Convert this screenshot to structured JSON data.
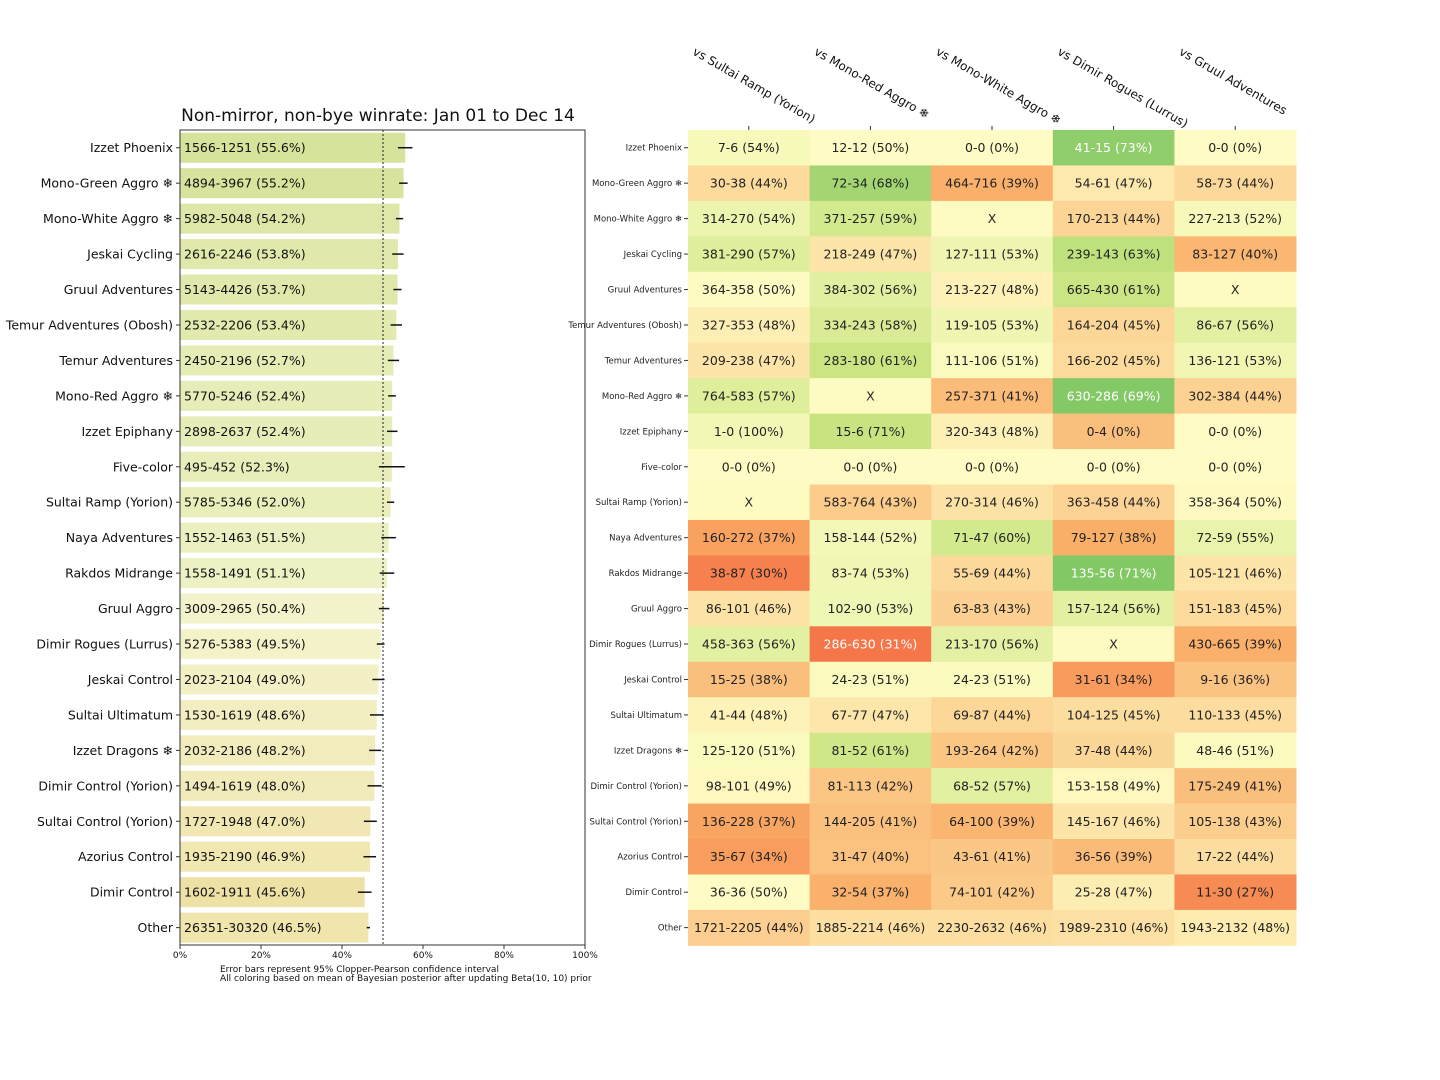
{
  "chart_data": [
    {
      "type": "bar",
      "title": "Non-mirror, non-bye winrate: Jan 01 to Dec 14",
      "orientation": "horizontal",
      "xlim": [
        0,
        100
      ],
      "x_ticks": [
        "0%",
        "20%",
        "40%",
        "60%",
        "80%",
        "100%"
      ],
      "reference_line": 50,
      "notes": [
        "Error bars represent 95% Clopper-Pearson confidence interval",
        "All coloring based on mean of Bayesian posterior after updating Beta(10, 10) prior"
      ],
      "categories": [
        "Izzet Phoenix",
        "Mono-Green Aggro ❄",
        "Mono-White Aggro ❄",
        "Jeskai Cycling",
        "Gruul Adventures",
        "Temur Adventures (Obosh)",
        "Temur Adventures",
        "Mono-Red Aggro ❄",
        "Izzet Epiphany",
        "Five-color",
        "Sultai Ramp (Yorion)",
        "Naya Adventures",
        "Rakdos Midrange",
        "Gruul Aggro",
        "Dimir Rogues (Lurrus)",
        "Jeskai Control",
        "Sultai Ultimatum",
        "Izzet Dragons ❄",
        "Dimir Control (Yorion)",
        "Sultai Control (Yorion)",
        "Azorius Control",
        "Dimir Control",
        "Other"
      ],
      "records": [
        "1566-1251 (55.6%)",
        "4894-3967 (55.2%)",
        "5982-5048 (54.2%)",
        "2616-2246 (53.8%)",
        "5143-4426 (53.7%)",
        "2532-2206 (53.4%)",
        "2450-2196 (52.7%)",
        "5770-5246 (52.4%)",
        "2898-2637 (52.4%)",
        "495-452 (52.3%)",
        "5785-5346 (52.0%)",
        "1552-1463 (51.5%)",
        "1558-1491 (51.1%)",
        "3009-2965 (50.4%)",
        "5276-5383 (49.5%)",
        "2023-2104 (49.0%)",
        "1530-1619 (48.6%)",
        "2032-2186 (48.2%)",
        "1494-1619 (48.0%)",
        "1727-1948 (47.0%)",
        "1935-2190 (46.9%)",
        "1602-1911 (45.6%)",
        "26351-30320 (46.5%)"
      ],
      "values": [
        55.6,
        55.2,
        54.2,
        53.8,
        53.7,
        53.4,
        52.7,
        52.4,
        52.4,
        52.3,
        52.0,
        51.5,
        51.1,
        50.4,
        49.5,
        49.0,
        48.6,
        48.2,
        48.0,
        47.0,
        46.9,
        45.6,
        46.5
      ],
      "error_bars": [
        [
          53.8,
          57.4
        ],
        [
          54.1,
          56.2
        ],
        [
          53.3,
          55.1
        ],
        [
          52.4,
          55.2
        ],
        [
          52.7,
          54.7
        ],
        [
          52.0,
          54.8
        ],
        [
          51.3,
          54.1
        ],
        [
          51.4,
          53.3
        ],
        [
          51.1,
          53.7
        ],
        [
          49.1,
          55.5
        ],
        [
          51.1,
          52.9
        ],
        [
          49.7,
          53.3
        ],
        [
          49.3,
          52.9
        ],
        [
          49.1,
          51.7
        ],
        [
          48.6,
          50.5
        ],
        [
          47.5,
          50.5
        ],
        [
          46.9,
          50.3
        ],
        [
          46.7,
          49.7
        ],
        [
          46.3,
          49.8
        ],
        [
          45.4,
          48.6
        ],
        [
          45.3,
          48.4
        ],
        [
          43.9,
          47.3
        ],
        [
          46.1,
          46.9
        ]
      ]
    },
    {
      "type": "heatmap",
      "columns": [
        "vs Sultai Ramp (Yorion)",
        "vs Mono-Red Aggro ❄",
        "vs Mono-White Aggro ❄",
        "vs Dimir Rogues (Lurrus)",
        "vs Gruul Adventures"
      ],
      "rows": [
        "Izzet Phoenix",
        "Mono-Green Aggro ❄",
        "Mono-White Aggro ❄",
        "Jeskai Cycling",
        "Gruul Adventures",
        "Temur Adventures (Obosh)",
        "Temur Adventures",
        "Mono-Red Aggro ❄",
        "Izzet Epiphany",
        "Five-color",
        "Sultai Ramp (Yorion)",
        "Naya Adventures",
        "Rakdos Midrange",
        "Gruul Aggro",
        "Dimir Rogues (Lurrus)",
        "Jeskai Control",
        "Sultai Ultimatum",
        "Izzet Dragons ❄",
        "Dimir Control (Yorion)",
        "Sultai Control (Yorion)",
        "Azorius Control",
        "Dimir Control",
        "Other"
      ],
      "cells": [
        [
          "7-6 (54%)",
          "12-12 (50%)",
          "0-0 (0%)",
          "41-15 (73%)",
          "0-0 (0%)"
        ],
        [
          "30-38 (44%)",
          "72-34 (68%)",
          "464-716 (39%)",
          "54-61 (47%)",
          "58-73 (44%)"
        ],
        [
          "314-270 (54%)",
          "371-257 (59%)",
          "X",
          "170-213 (44%)",
          "227-213 (52%)"
        ],
        [
          "381-290 (57%)",
          "218-249 (47%)",
          "127-111 (53%)",
          "239-143 (63%)",
          "83-127 (40%)"
        ],
        [
          "364-358 (50%)",
          "384-302 (56%)",
          "213-227 (48%)",
          "665-430 (61%)",
          "X"
        ],
        [
          "327-353 (48%)",
          "334-243 (58%)",
          "119-105 (53%)",
          "164-204 (45%)",
          "86-67 (56%)"
        ],
        [
          "209-238 (47%)",
          "283-180 (61%)",
          "111-106 (51%)",
          "166-202 (45%)",
          "136-121 (53%)"
        ],
        [
          "764-583 (57%)",
          "X",
          "257-371 (41%)",
          "630-286 (69%)",
          "302-384 (44%)"
        ],
        [
          "1-0 (100%)",
          "15-6 (71%)",
          "320-343 (48%)",
          "0-4 (0%)",
          "0-0 (0%)"
        ],
        [
          "0-0 (0%)",
          "0-0 (0%)",
          "0-0 (0%)",
          "0-0 (0%)",
          "0-0 (0%)"
        ],
        [
          "X",
          "583-764 (43%)",
          "270-314 (46%)",
          "363-458 (44%)",
          "358-364 (50%)"
        ],
        [
          "160-272 (37%)",
          "158-144 (52%)",
          "71-47 (60%)",
          "79-127 (38%)",
          "72-59 (55%)"
        ],
        [
          "38-87 (30%)",
          "83-74 (53%)",
          "55-69 (44%)",
          "135-56 (71%)",
          "105-121 (46%)"
        ],
        [
          "86-101 (46%)",
          "102-90 (53%)",
          "63-83 (43%)",
          "157-124 (56%)",
          "151-183 (45%)"
        ],
        [
          "458-363 (56%)",
          "286-630 (31%)",
          "213-170 (56%)",
          "X",
          "430-665 (39%)"
        ],
        [
          "15-25 (38%)",
          "24-23 (51%)",
          "24-23 (51%)",
          "31-61 (34%)",
          "9-16 (36%)"
        ],
        [
          "41-44 (48%)",
          "67-77 (47%)",
          "69-87 (44%)",
          "104-125 (45%)",
          "110-133 (45%)"
        ],
        [
          "125-120 (51%)",
          "81-52 (61%)",
          "193-264 (42%)",
          "37-48 (44%)",
          "48-46 (51%)"
        ],
        [
          "98-101 (49%)",
          "81-113 (42%)",
          "68-52 (57%)",
          "153-158 (49%)",
          "175-249 (41%)"
        ],
        [
          "136-228 (37%)",
          "144-205 (41%)",
          "64-100 (39%)",
          "145-167 (46%)",
          "105-138 (43%)"
        ],
        [
          "35-67 (34%)",
          "31-47 (40%)",
          "43-61 (41%)",
          "36-56 (39%)",
          "17-22 (44%)"
        ],
        [
          "36-36 (50%)",
          "32-54 (37%)",
          "74-101 (42%)",
          "25-28 (47%)",
          "11-30 (27%)"
        ],
        [
          "1721-2205 (44%)",
          "1885-2214 (46%)",
          "2230-2632 (46%)",
          "1989-2310 (46%)",
          "1943-2132 (48%)"
        ]
      ],
      "wins": [
        [
          7,
          12,
          0,
          41,
          0
        ],
        [
          30,
          72,
          464,
          54,
          58
        ],
        [
          314,
          371,
          null,
          170,
          227
        ],
        [
          381,
          218,
          127,
          239,
          83
        ],
        [
          364,
          384,
          213,
          665,
          null
        ],
        [
          327,
          334,
          119,
          164,
          86
        ],
        [
          209,
          283,
          111,
          166,
          136
        ],
        [
          764,
          null,
          257,
          630,
          302
        ],
        [
          1,
          15,
          320,
          0,
          0
        ],
        [
          0,
          0,
          0,
          0,
          0
        ],
        [
          null,
          583,
          270,
          363,
          358
        ],
        [
          160,
          158,
          71,
          79,
          72
        ],
        [
          38,
          83,
          55,
          135,
          105
        ],
        [
          86,
          102,
          63,
          157,
          151
        ],
        [
          458,
          286,
          213,
          null,
          430
        ],
        [
          15,
          24,
          24,
          31,
          9
        ],
        [
          41,
          67,
          69,
          104,
          110
        ],
        [
          125,
          81,
          193,
          37,
          48
        ],
        [
          98,
          81,
          68,
          153,
          175
        ],
        [
          136,
          144,
          64,
          145,
          105
        ],
        [
          35,
          31,
          43,
          36,
          17
        ],
        [
          36,
          32,
          74,
          25,
          11
        ],
        [
          1721,
          1885,
          2230,
          1989,
          1943
        ]
      ],
      "losses": [
        [
          6,
          12,
          0,
          15,
          0
        ],
        [
          38,
          34,
          716,
          61,
          73
        ],
        [
          270,
          257,
          null,
          213,
          213
        ],
        [
          290,
          249,
          111,
          143,
          127
        ],
        [
          358,
          302,
          227,
          430,
          null
        ],
        [
          353,
          243,
          105,
          204,
          67
        ],
        [
          238,
          180,
          106,
          202,
          121
        ],
        [
          583,
          null,
          371,
          286,
          384
        ],
        [
          0,
          6,
          343,
          4,
          0
        ],
        [
          0,
          0,
          0,
          0,
          0
        ],
        [
          null,
          764,
          314,
          458,
          364
        ],
        [
          272,
          144,
          47,
          127,
          59
        ],
        [
          87,
          74,
          69,
          56,
          121
        ],
        [
          101,
          90,
          83,
          124,
          183
        ],
        [
          363,
          630,
          170,
          null,
          665
        ],
        [
          25,
          23,
          23,
          61,
          16
        ],
        [
          44,
          77,
          87,
          125,
          133
        ],
        [
          120,
          52,
          264,
          48,
          46
        ],
        [
          101,
          113,
          52,
          158,
          249
        ],
        [
          228,
          205,
          100,
          167,
          138
        ],
        [
          67,
          47,
          61,
          56,
          22
        ],
        [
          36,
          54,
          101,
          28,
          30
        ],
        [
          2205,
          2214,
          2632,
          2310,
          2132
        ]
      ]
    }
  ]
}
